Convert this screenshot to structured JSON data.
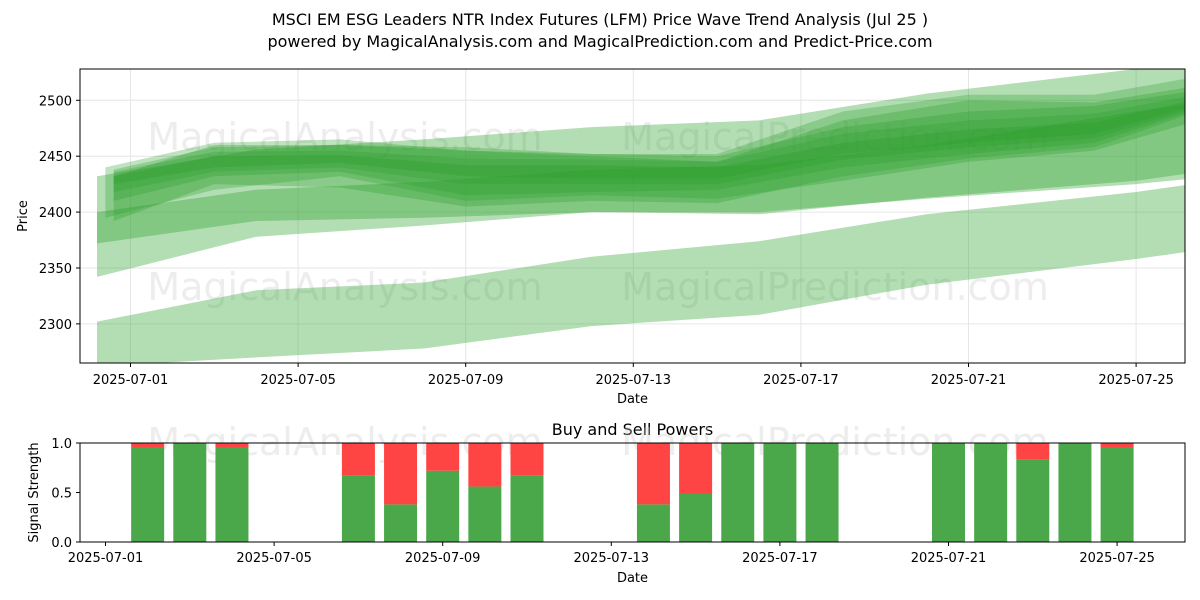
{
  "title": "MSCI EM ESG Leaders NTR Index Futures (LFM) Price Wave Trend Analysis (Jul 25 )",
  "subtitle": "powered by MagicalAnalysis.com and MagicalPrediction.com and Predict-Price.com",
  "watermarks": [
    "MagicalAnalysis.com",
    "MagicalPrediction.com"
  ],
  "colors": {
    "band": "#2ca02c",
    "buy": "#4aa84a",
    "sell": "#ff4444"
  },
  "chart_data": [
    {
      "type": "area",
      "xlabel": "Date",
      "ylabel": "Price",
      "ylim": [
        2265,
        2528
      ],
      "yticks": [
        2300,
        2350,
        2400,
        2450,
        2500
      ],
      "xtick_labels": [
        "2025-07-01",
        "2025-07-05",
        "2025-07-09",
        "2025-07-13",
        "2025-07-17",
        "2025-07-21",
        "2025-07-25"
      ],
      "grid": true,
      "series": [
        {
          "kind": "band",
          "x": [
            -0.8,
            3,
            7,
            11,
            15,
            19,
            24,
            25.9
          ],
          "lower": [
            2262,
            2270,
            2278,
            2298,
            2308,
            2335,
            2358,
            2368
          ],
          "upper": [
            2302,
            2330,
            2337,
            2360,
            2374,
            2398,
            2418,
            2428
          ]
        },
        {
          "kind": "band",
          "x": [
            -0.8,
            3,
            7,
            11,
            15,
            19,
            24,
            25.9
          ],
          "lower": [
            2342,
            2378,
            2388,
            2400,
            2398,
            2413,
            2428,
            2438
          ],
          "upper": [
            2400,
            2420,
            2427,
            2438,
            2442,
            2460,
            2490,
            2500
          ]
        },
        {
          "kind": "band",
          "x": [
            -0.8,
            3,
            7,
            11,
            15,
            19,
            24,
            25.9
          ],
          "lower": [
            2372,
            2392,
            2395,
            2400,
            2400,
            2412,
            2425,
            2432
          ],
          "upper": [
            2432,
            2456,
            2465,
            2476,
            2482,
            2506,
            2528,
            2528
          ]
        },
        {
          "kind": "band",
          "x": [
            -0.6,
            2,
            5,
            8,
            11,
            14,
            17,
            20,
            23,
            25.3
          ],
          "lower": [
            2395,
            2420,
            2432,
            2410,
            2415,
            2412,
            2428,
            2445,
            2455,
            2480
          ],
          "upper": [
            2440,
            2462,
            2465,
            2455,
            2450,
            2445,
            2482,
            2500,
            2498,
            2512
          ]
        },
        {
          "kind": "band",
          "x": [
            -0.4,
            2,
            5,
            8,
            11,
            14,
            17,
            20,
            23,
            25.3
          ],
          "lower": [
            2392,
            2425,
            2422,
            2405,
            2410,
            2408,
            2432,
            2448,
            2458,
            2488
          ],
          "upper": [
            2432,
            2460,
            2460,
            2458,
            2452,
            2452,
            2490,
            2505,
            2505,
            2520
          ]
        },
        {
          "kind": "band",
          "x": [
            -0.4,
            2,
            5,
            8,
            11,
            14,
            17,
            20,
            23,
            25.3
          ],
          "lower": [
            2410,
            2432,
            2436,
            2415,
            2418,
            2420,
            2440,
            2452,
            2462,
            2490
          ],
          "upper": [
            2438,
            2458,
            2460,
            2455,
            2452,
            2450,
            2476,
            2490,
            2495,
            2508
          ]
        },
        {
          "kind": "band",
          "x": [
            -0.4,
            2,
            5,
            8,
            11,
            14,
            17,
            20,
            23,
            25.3
          ],
          "lower": [
            2418,
            2436,
            2440,
            2425,
            2425,
            2425,
            2447,
            2458,
            2466,
            2492
          ],
          "upper": [
            2436,
            2454,
            2455,
            2448,
            2447,
            2445,
            2470,
            2482,
            2488,
            2504
          ]
        },
        {
          "kind": "band",
          "x": [
            -0.4,
            2,
            5,
            8,
            11,
            14,
            17,
            20,
            23,
            25.3
          ],
          "lower": [
            2425,
            2440,
            2444,
            2432,
            2430,
            2430,
            2452,
            2462,
            2470,
            2494
          ],
          "upper": [
            2432,
            2450,
            2451,
            2442,
            2442,
            2440,
            2462,
            2474,
            2480,
            2500
          ]
        }
      ]
    },
    {
      "type": "bar",
      "title": "Buy and Sell Powers",
      "xlabel": "Date",
      "ylabel": "Signal Strength",
      "ylim": [
        0,
        1
      ],
      "yticks": [
        0.0,
        0.5,
        1.0
      ],
      "ytick_labels": [
        "0.0",
        "0.5",
        "1.0"
      ],
      "xtick_labels": [
        "2025-07-01",
        "2025-07-05",
        "2025-07-09",
        "2025-07-13",
        "2025-07-17",
        "2025-07-21",
        "2025-07-25"
      ],
      "days": [
        1,
        2,
        3,
        6,
        7,
        8,
        9,
        10,
        13,
        14,
        15,
        16,
        17,
        20,
        21,
        22,
        23,
        24
      ],
      "buy": [
        0.95,
        1.0,
        0.95,
        0.67,
        0.38,
        0.72,
        0.56,
        0.67,
        0.38,
        0.49,
        1.0,
        1.0,
        1.0,
        1.0,
        1.0,
        0.83,
        1.0,
        0.95
      ],
      "sell": [
        0.05,
        0.0,
        0.05,
        0.33,
        0.62,
        0.28,
        0.44,
        0.33,
        0.62,
        0.51,
        0.0,
        0.0,
        0.0,
        0.0,
        0.0,
        0.17,
        0.0,
        0.05
      ]
    }
  ]
}
